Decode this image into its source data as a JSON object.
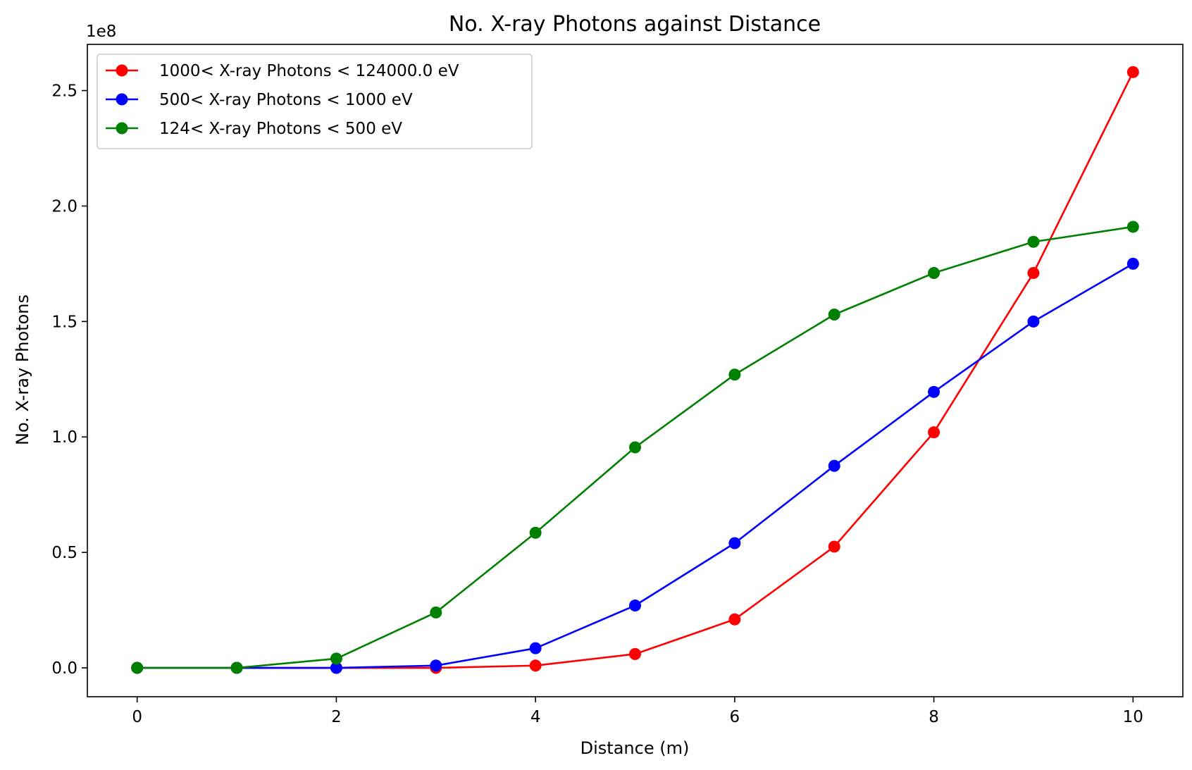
{
  "chart_data": {
    "type": "line",
    "title": "No. X-ray Photons against Distance",
    "xlabel": "Distance (m)",
    "ylabel": "No. X-ray Photons",
    "y_offset_label": "1e8",
    "xlim": [
      -0.5,
      10.5
    ],
    "ylim": [
      -12500000,
      270000000
    ],
    "x_ticks": [
      0,
      2,
      4,
      6,
      8,
      10
    ],
    "x_tick_labels": [
      "0",
      "2",
      "4",
      "6",
      "8",
      "10"
    ],
    "y_ticks": [
      0,
      50000000,
      100000000,
      150000000,
      200000000,
      250000000
    ],
    "y_tick_labels": [
      "0.0",
      "0.5",
      "1.0",
      "1.5",
      "2.0",
      "2.5"
    ],
    "grid": false,
    "legend_position": "top-left",
    "x": [
      0,
      1,
      2,
      3,
      4,
      5,
      6,
      7,
      8,
      9,
      10
    ],
    "series": [
      {
        "name": "1000< X-ray Photons < 124000.0 eV",
        "color": "#ff0000",
        "values": [
          0,
          0,
          0,
          0,
          1000000,
          6000000,
          21000000,
          52500000,
          102000000,
          171000000,
          258000000
        ]
      },
      {
        "name": "500< X-ray Photons < 1000 eV",
        "color": "#0000ff",
        "values": [
          0,
          0,
          0,
          1000000,
          8500000,
          27000000,
          54000000,
          87500000,
          119500000,
          150000000,
          175000000
        ]
      },
      {
        "name": "124< X-ray Photons < 500 eV",
        "color": "#008000",
        "values": [
          0,
          0,
          4000000,
          24000000,
          58500000,
          95500000,
          127000000,
          153000000,
          171000000,
          184500000,
          191000000
        ]
      }
    ]
  }
}
